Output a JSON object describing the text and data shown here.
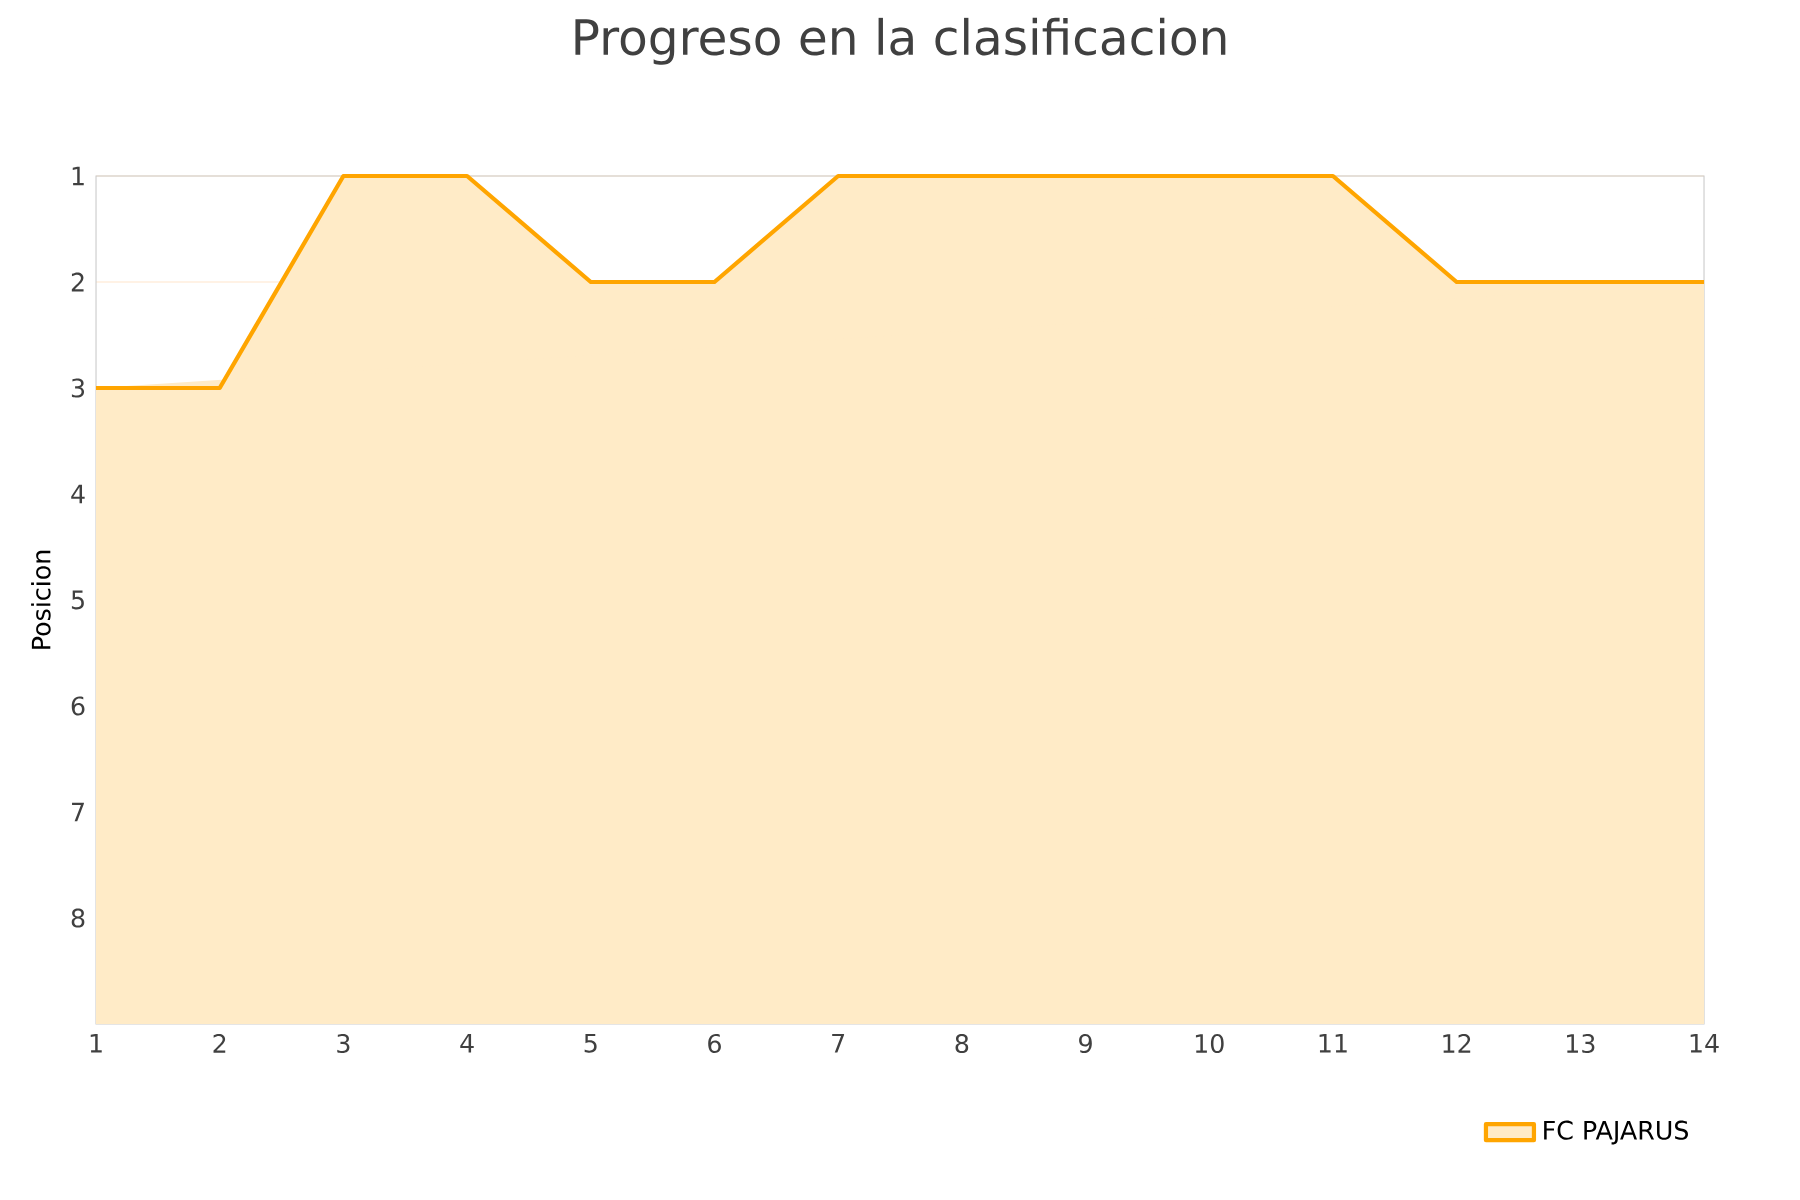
{
  "chart_data": {
    "type": "area",
    "title": "Progreso en la clasificacion",
    "ylabel": "Posicion",
    "x": [
      1,
      2,
      3,
      4,
      5,
      6,
      7,
      8,
      9,
      10,
      11,
      12,
      13,
      14
    ],
    "series": [
      {
        "name": "FC PAJARUS",
        "color": "#ffa500",
        "values": [
          3,
          3,
          1,
          1,
          2,
          2,
          1,
          1,
          1,
          1,
          1,
          2,
          2,
          2
        ]
      }
    ],
    "xlim": [
      1,
      14
    ],
    "xticks": [
      1,
      2,
      3,
      4,
      5,
      6,
      7,
      8,
      9,
      10,
      11,
      12,
      13,
      14
    ],
    "ylim": [
      9,
      1
    ],
    "yticks": [
      1,
      2,
      3,
      4,
      5,
      6,
      7,
      8
    ],
    "grid": "y",
    "legend": "bottom right"
  }
}
